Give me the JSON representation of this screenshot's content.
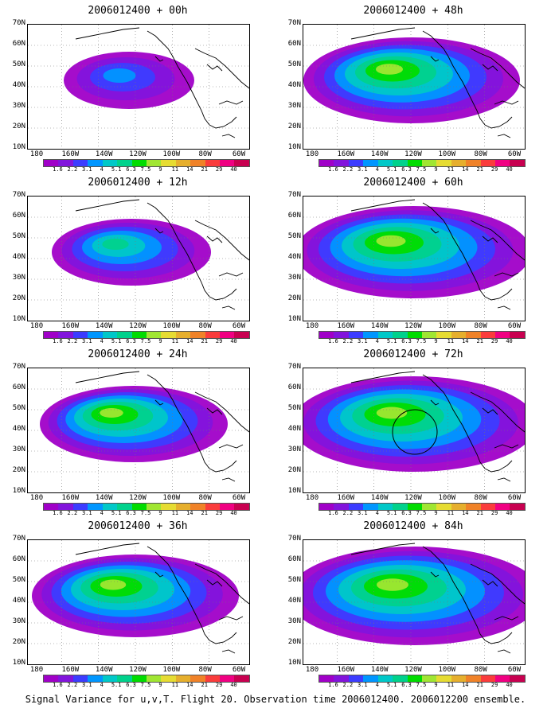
{
  "caption": "Signal Variance for u,v,T. Flight 20. Observation time 2006012400. 2006012200 ensemble.",
  "lat_labels": [
    "70N",
    "60N",
    "50N",
    "40N",
    "30N",
    "20N",
    "10N"
  ],
  "lon_labels": [
    "180",
    "160W",
    "140W",
    "120W",
    "100W",
    "80W",
    "60W"
  ],
  "colorbar": {
    "labels": [
      "1.6",
      "2.2",
      "3.1",
      "4",
      "5.1",
      "6.3",
      "7.5",
      "9",
      "11",
      "14",
      "21",
      "29",
      "40"
    ],
    "colors": [
      "#a000c8",
      "#8214dc",
      "#3c3cff",
      "#0096ff",
      "#00c8c8",
      "#00d28c",
      "#00dc00",
      "#a0e632",
      "#e6dc32",
      "#e6af2d",
      "#f08228",
      "#fa3c3c",
      "#f00082"
    ]
  },
  "panels": [
    {
      "title": "2006012400 + 00h",
      "intensity": 0.15,
      "spread": 0.35,
      "circle": false
    },
    {
      "title": "2006012400 + 48h",
      "intensity": 0.75,
      "spread": 0.8,
      "circle": false
    },
    {
      "title": "2006012400 + 12h",
      "intensity": 0.45,
      "spread": 0.5,
      "circle": false
    },
    {
      "title": "2006012400 + 60h",
      "intensity": 0.75,
      "spread": 0.9,
      "circle": false
    },
    {
      "title": "2006012400 + 24h",
      "intensity": 0.65,
      "spread": 0.65,
      "circle": false
    },
    {
      "title": "2006012400 + 72h",
      "intensity": 0.7,
      "spread": 0.95,
      "circle": true
    },
    {
      "title": "2006012400 + 36h",
      "intensity": 0.75,
      "spread": 0.75,
      "circle": false
    },
    {
      "title": "2006012400 + 84h",
      "intensity": 0.65,
      "spread": 1.0,
      "circle": false
    }
  ]
}
